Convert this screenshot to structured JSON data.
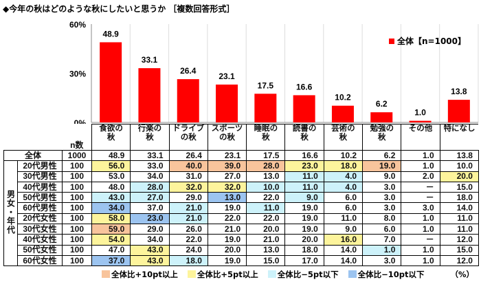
{
  "title": "◆今年の秋はどのような秋にしたいと思うか ［複数回答形式］",
  "chart_data": {
    "type": "bar",
    "categories": [
      "食欲の秋",
      "行楽の秋",
      "ドライブの秋",
      "スポーツの秋",
      "睡眠の秋",
      "読書の秋",
      "芸術の秋",
      "勉強の秋",
      "その他",
      "特になし"
    ],
    "category_lines": [
      [
        "食欲の",
        "秋"
      ],
      [
        "行楽の",
        "秋"
      ],
      [
        "ドライブ",
        "の秋"
      ],
      [
        "スポーツ",
        "の秋"
      ],
      [
        "睡眠の",
        "秋"
      ],
      [
        "読書の",
        "秋"
      ],
      [
        "芸術の",
        "秋"
      ],
      [
        "勉強の",
        "秋"
      ],
      [
        "その他",
        ""
      ],
      [
        "特になし",
        ""
      ]
    ],
    "series": [
      {
        "name": "全体【n=1000】",
        "values": [
          48.9,
          33.1,
          26.4,
          23.1,
          17.5,
          16.6,
          10.2,
          6.2,
          1.0,
          13.8
        ]
      }
    ],
    "data_labels": [
      "48.9",
      "33.1",
      "26.4",
      "23.1",
      "17.5",
      "16.6",
      "10.2",
      "6.2",
      "1.0",
      "13.8"
    ],
    "ylim": [
      0,
      60
    ],
    "yticks": [
      "0%",
      "30%",
      "60%"
    ],
    "bar_color": "#ff0000",
    "legend_position": "top-right",
    "grid": "vertical"
  },
  "table": {
    "n_header": "n数",
    "group_label": "男女・年代",
    "total": {
      "label": "全体",
      "n": "1000",
      "values": [
        "48.9",
        "33.1",
        "26.4",
        "23.1",
        "17.5",
        "16.6",
        "10.2",
        "6.2",
        "1.0",
        "13.8"
      ]
    },
    "rows": [
      {
        "label": "20代男性",
        "n": "100",
        "values": [
          "56.0",
          "33.0",
          "40.0",
          "39.0",
          "28.0",
          "23.0",
          "18.0",
          "19.0",
          "1.0",
          "10.0"
        ],
        "hl": [
          "y",
          "",
          "o",
          "o",
          "o",
          "y",
          "y",
          "o",
          "",
          ""
        ]
      },
      {
        "label": "30代男性",
        "n": "100",
        "values": [
          "53.0",
          "34.0",
          "31.0",
          "27.0",
          "13.0",
          "11.0",
          "4.0",
          "9.0",
          "2.0",
          "20.0"
        ],
        "hl": [
          "",
          "",
          "",
          "",
          "",
          "c",
          "c",
          "",
          "",
          "y"
        ]
      },
      {
        "label": "40代男性",
        "n": "100",
        "values": [
          "48.0",
          "28.0",
          "32.0",
          "32.0",
          "10.0",
          "11.0",
          "4.0",
          "3.0",
          "－",
          "15.0"
        ],
        "hl": [
          "",
          "c",
          "y",
          "y",
          "c",
          "c",
          "c",
          "",
          "",
          ""
        ]
      },
      {
        "label": "50代男性",
        "n": "100",
        "values": [
          "43.0",
          "27.0",
          "29.0",
          "13.0",
          "22.0",
          "9.0",
          "6.0",
          "3.0",
          "－",
          "18.0"
        ],
        "hl": [
          "c",
          "c",
          "",
          "b",
          "",
          "c",
          "",
          "",
          "",
          ""
        ]
      },
      {
        "label": "60代男性",
        "n": "100",
        "values": [
          "34.0",
          "37.0",
          "21.0",
          "19.0",
          "11.0",
          "19.0",
          "6.0",
          "3.0",
          "3.0",
          "14.0"
        ],
        "hl": [
          "b",
          "",
          "c",
          "",
          "c",
          "",
          "",
          "",
          "",
          ""
        ]
      },
      {
        "label": "20代女性",
        "n": "100",
        "values": [
          "58.0",
          "23.0",
          "21.0",
          "22.0",
          "22.0",
          "19.0",
          "11.0",
          "8.0",
          "1.0",
          "11.0"
        ],
        "hl": [
          "y",
          "b",
          "c",
          "",
          "",
          "",
          "",
          "",
          "",
          ""
        ]
      },
      {
        "label": "30代女性",
        "n": "100",
        "values": [
          "59.0",
          "29.0",
          "26.0",
          "21.0",
          "20.0",
          "19.0",
          "9.0",
          "6.0",
          "1.0",
          "11.0"
        ],
        "hl": [
          "o",
          "",
          "",
          "",
          "",
          "",
          "",
          "",
          "",
          ""
        ]
      },
      {
        "label": "40代女性",
        "n": "100",
        "values": [
          "54.0",
          "34.0",
          "22.0",
          "19.0",
          "21.0",
          "20.0",
          "16.0",
          "7.0",
          "－",
          "12.0"
        ],
        "hl": [
          "y",
          "",
          "",
          "",
          "",
          "",
          "y",
          "",
          "",
          ""
        ]
      },
      {
        "label": "50代女性",
        "n": "100",
        "values": [
          "47.0",
          "43.0",
          "24.0",
          "20.0",
          "13.0",
          "18.0",
          "14.0",
          "1.0",
          "1.0",
          "15.0"
        ],
        "hl": [
          "",
          "y",
          "",
          "",
          "",
          "",
          "",
          "c",
          "",
          ""
        ]
      },
      {
        "label": "60代女性",
        "n": "100",
        "values": [
          "37.0",
          "43.0",
          "18.0",
          "19.0",
          "15.0",
          "17.0",
          "14.0",
          "3.0",
          "1.0",
          "12.0"
        ],
        "hl": [
          "b",
          "y",
          "c",
          "",
          "",
          "",
          "",
          "",
          "",
          ""
        ]
      }
    ]
  },
  "legend": [
    {
      "label": "全体比+10pt以上",
      "color": "#f8c49c"
    },
    {
      "label": "全体比+5pt以上",
      "color": "#fdf49c"
    },
    {
      "label": "全体比−5pt以下",
      "color": "#cdf2fa"
    },
    {
      "label": "全体比−10pt以下",
      "color": "#9cc4f0"
    }
  ],
  "unit": "（%）"
}
